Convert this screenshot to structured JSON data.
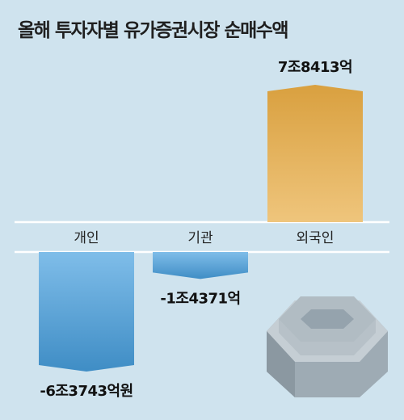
{
  "title": "올해 투자자별 유가증권시장 순매수액",
  "colors": {
    "background": "#cfe3ee",
    "positive_top": "#d9a03f",
    "positive_bottom": "#efc57c",
    "negative_top": "#7fbde9",
    "negative_bottom": "#3f8dc5"
  },
  "decoration": "stacked-coin-illustration",
  "chart_data": {
    "type": "bar",
    "title": "올해 투자자별 유가증권시장 순매수액",
    "xlabel": "",
    "ylabel": "",
    "unit": "억원",
    "categories": [
      "개인",
      "기관",
      "외국인"
    ],
    "values": [
      -63743,
      -14371,
      78413
    ],
    "data_labels": [
      "-6조3743억원",
      "-1조4371억",
      "7조8413억"
    ],
    "ylim": [
      -63743,
      78413
    ],
    "grid": false,
    "legend": "none"
  }
}
